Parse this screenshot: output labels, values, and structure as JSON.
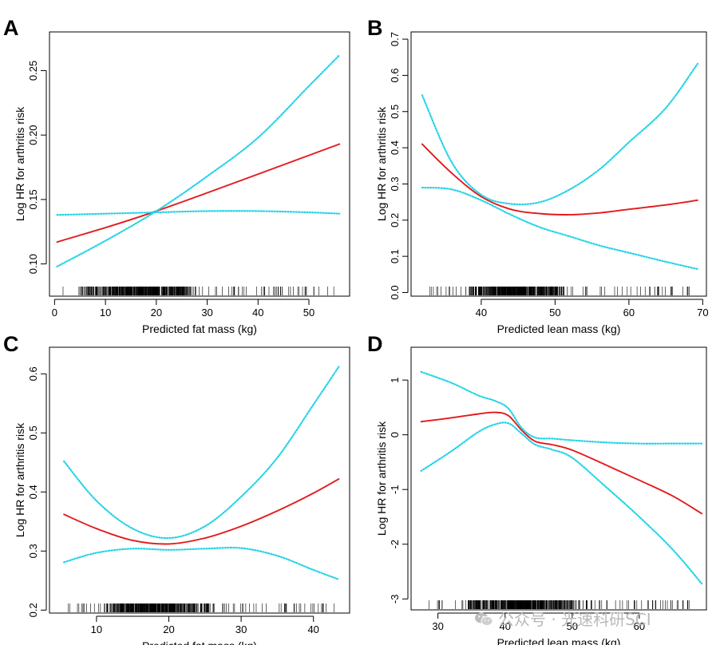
{
  "colors": {
    "estimate": "#e41a1c",
    "ci": "#22d3e6",
    "axis": "#000000",
    "rug": "#000000"
  },
  "watermark": {
    "icon": "wechat-icon",
    "text": "公众号 · 光速科研SCI"
  },
  "chart_data": [
    {
      "panel": "A",
      "type": "line",
      "xlabel": "Predicted fat mass (kg)",
      "ylabel": "Log HR for arthritis risk",
      "xlim": [
        -1,
        58
      ],
      "ylim": [
        0.075,
        0.28
      ],
      "xticks": [
        0,
        10,
        20,
        30,
        40,
        50
      ],
      "yticks": [
        0.1,
        0.15,
        0.2,
        0.25
      ],
      "ytick_labels": [
        "0.10",
        "0.15",
        "0.20",
        "0.25"
      ],
      "series": [
        {
          "role": "estimate",
          "x": [
            0.5,
            20,
            56
          ],
          "y": [
            0.117,
            0.141,
            0.193
          ]
        },
        {
          "role": "upper_ci",
          "x": [
            0.5,
            10,
            20,
            30,
            40,
            50,
            56
          ],
          "y": [
            0.138,
            0.139,
            0.14,
            0.141,
            0.141,
            0.14,
            0.139
          ]
        },
        {
          "role": "lower_ci",
          "x": [
            0.5,
            10,
            20,
            30,
            40,
            50,
            56
          ],
          "y": [
            0.098,
            0.118,
            0.141,
            0.168,
            0.198,
            0.238,
            0.262
          ]
        }
      ],
      "rug": {
        "from": 1,
        "to": 55,
        "dense_from": 4,
        "dense_to": 30
      }
    },
    {
      "panel": "B",
      "type": "line",
      "xlabel": "Predicted lean mass (kg)",
      "ylabel": "Log HR for arthritis risk",
      "xlim": [
        30.5,
        70.5
      ],
      "ylim": [
        -0.01,
        0.72
      ],
      "xticks": [
        40,
        50,
        60,
        70
      ],
      "yticks": [
        0.0,
        0.1,
        0.2,
        0.3,
        0.4,
        0.5,
        0.6,
        0.7
      ],
      "ytick_labels": [
        "0.0",
        "0.1",
        "0.2",
        "0.3",
        "0.4",
        "0.5",
        "0.6",
        "0.7"
      ],
      "series": [
        {
          "role": "estimate",
          "x": [
            32,
            36,
            40,
            44,
            48,
            52,
            56,
            60,
            65,
            69.3
          ],
          "y": [
            0.41,
            0.33,
            0.265,
            0.23,
            0.218,
            0.215,
            0.22,
            0.23,
            0.242,
            0.255
          ]
        },
        {
          "role": "upper_ci",
          "x": [
            32,
            36,
            40,
            44,
            48,
            52,
            56,
            60,
            65,
            69.3
          ],
          "y": [
            0.545,
            0.36,
            0.27,
            0.245,
            0.25,
            0.285,
            0.34,
            0.415,
            0.51,
            0.632
          ]
        },
        {
          "role": "lower_ci",
          "x": [
            32,
            36,
            40,
            44,
            48,
            52,
            56,
            60,
            65,
            69.3
          ],
          "y": [
            0.29,
            0.285,
            0.255,
            0.215,
            0.18,
            0.155,
            0.13,
            0.11,
            0.085,
            0.065
          ]
        }
      ],
      "rug": {
        "from": 33,
        "to": 69,
        "dense_from": 37,
        "dense_to": 52
      }
    },
    {
      "panel": "C",
      "type": "line",
      "xlabel": "Predicted fat mass (kg)",
      "ylabel": "Log HR for arthritis risk",
      "xlim": [
        3.5,
        45
      ],
      "ylim": [
        0.195,
        0.645
      ],
      "xticks": [
        10,
        20,
        30,
        40
      ],
      "yticks": [
        0.2,
        0.3,
        0.4,
        0.5,
        0.6
      ],
      "ytick_labels": [
        "0.2",
        "0.3",
        "0.4",
        "0.5",
        "0.6"
      ],
      "series": [
        {
          "role": "estimate",
          "x": [
            5.5,
            10,
            15,
            20,
            25,
            30,
            35,
            40,
            43.5
          ],
          "y": [
            0.362,
            0.338,
            0.318,
            0.312,
            0.322,
            0.342,
            0.368,
            0.398,
            0.422
          ]
        },
        {
          "role": "upper_ci",
          "x": [
            5.5,
            10,
            15,
            20,
            25,
            30,
            35,
            40,
            43.5
          ],
          "y": [
            0.452,
            0.385,
            0.338,
            0.322,
            0.342,
            0.392,
            0.458,
            0.548,
            0.612
          ]
        },
        {
          "role": "lower_ci",
          "x": [
            5.5,
            10,
            15,
            20,
            25,
            30,
            35,
            40,
            43.5
          ],
          "y": [
            0.281,
            0.297,
            0.304,
            0.302,
            0.304,
            0.305,
            0.292,
            0.268,
            0.252
          ]
        }
      ],
      "rug": {
        "from": 6,
        "to": 43,
        "dense_from": 10,
        "dense_to": 27
      }
    },
    {
      "panel": "D",
      "type": "line",
      "xlabel": "Predicted lean mass (kg)",
      "ylabel": "Log HR for arthritis risk",
      "xlim": [
        26,
        70
      ],
      "ylim": [
        -3.2,
        1.6
      ],
      "xticks": [
        30,
        40,
        50,
        60
      ],
      "yticks": [
        1,
        0,
        -1,
        -2,
        -3
      ],
      "ytick_labels": [
        "1",
        "0",
        "-1",
        "-2",
        "-3"
      ],
      "series": [
        {
          "role": "estimate",
          "x": [
            27.5,
            32,
            36,
            38.5,
            40.5,
            42.5,
            44.5,
            47,
            50,
            55,
            60,
            65,
            69.3
          ],
          "y": [
            0.24,
            0.31,
            0.38,
            0.41,
            0.35,
            0.08,
            -0.12,
            -0.18,
            -0.28,
            -0.55,
            -0.83,
            -1.12,
            -1.44
          ]
        },
        {
          "role": "upper_ci",
          "x": [
            27.5,
            32,
            36,
            38.5,
            40.5,
            42.5,
            44.5,
            47,
            50,
            55,
            60,
            65,
            69.3
          ],
          "y": [
            1.15,
            0.95,
            0.72,
            0.62,
            0.48,
            0.12,
            -0.05,
            -0.07,
            -0.1,
            -0.14,
            -0.16,
            -0.16,
            -0.16
          ]
        },
        {
          "role": "lower_ci",
          "x": [
            27.5,
            32,
            36,
            38.5,
            40.5,
            42.5,
            44.5,
            47,
            50,
            55,
            60,
            65,
            69.3
          ],
          "y": [
            -0.66,
            -0.3,
            0.05,
            0.19,
            0.21,
            0.02,
            -0.18,
            -0.27,
            -0.42,
            -0.95,
            -1.5,
            -2.1,
            -2.72
          ]
        }
      ],
      "rug": {
        "from": 28,
        "to": 69,
        "dense_from": 33,
        "dense_to": 52
      }
    }
  ]
}
